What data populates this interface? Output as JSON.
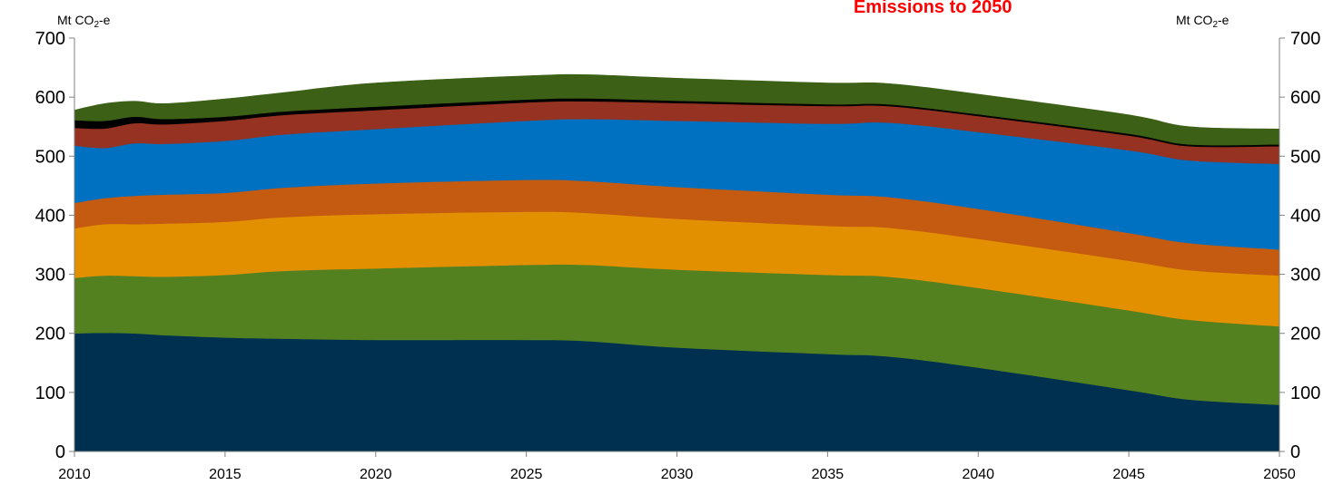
{
  "chart_data": {
    "type": "area",
    "title": "Emissions to 2050",
    "ylabel_left": {
      "pre": "Mt CO",
      "sub": "2",
      "post": "-e"
    },
    "ylabel_right": {
      "pre": "Mt CO",
      "sub": "2",
      "post": "-e"
    },
    "xlim": [
      2010,
      2050
    ],
    "ylim": [
      0,
      700
    ],
    "x_ticks": [
      2010,
      2015,
      2020,
      2025,
      2030,
      2035,
      2040,
      2045,
      2050
    ],
    "y_ticks": [
      0,
      100,
      200,
      300,
      400,
      500,
      600,
      700
    ],
    "stacked": true,
    "x_points": [
      2010,
      2011,
      2012,
      2013,
      2015,
      2017,
      2020,
      2025,
      2027,
      2030,
      2035,
      2037,
      2040,
      2045,
      2047,
      2050
    ],
    "series": [
      {
        "color": "#003050",
        "values": [
          200,
          201,
          200,
          197,
          193,
          191,
          189,
          189,
          187,
          176,
          165,
          161,
          142,
          104,
          88,
          79
        ]
      },
      {
        "color": "#538120",
        "values": [
          94,
          97,
          97,
          99,
          106,
          115,
          121,
          127,
          129,
          132,
          134,
          135,
          135,
          135,
          135,
          133
        ]
      },
      {
        "color": "#E28F00",
        "values": [
          84,
          87,
          88,
          90,
          90,
          91,
          92,
          90,
          88,
          86,
          83,
          83,
          83,
          84,
          84,
          86
        ]
      },
      {
        "color": "#C55A11",
        "values": [
          43,
          44,
          48,
          49,
          49,
          50,
          52,
          54,
          54,
          54,
          53,
          52,
          51,
          47,
          46,
          44
        ]
      },
      {
        "color": "#0070C0",
        "values": [
          97,
          85,
          89,
          86,
          88,
          90,
          92,
          100,
          105,
          112,
          120,
          126,
          130,
          140,
          140,
          145
        ]
      },
      {
        "color": "#953222",
        "values": [
          30,
          33,
          34,
          33,
          34,
          33,
          32,
          31,
          30,
          30,
          30,
          28,
          27,
          25,
          24,
          30
        ]
      },
      {
        "color": "#000000",
        "values": [
          13,
          13,
          11,
          9,
          7,
          6,
          6,
          5,
          5,
          4,
          3,
          3,
          3,
          3,
          3,
          3
        ]
      },
      {
        "color": "#3C6015",
        "values": [
          17,
          29,
          26,
          26,
          30,
          32,
          40,
          40,
          40,
          38,
          36,
          35,
          34,
          32,
          30,
          26
        ]
      }
    ]
  }
}
